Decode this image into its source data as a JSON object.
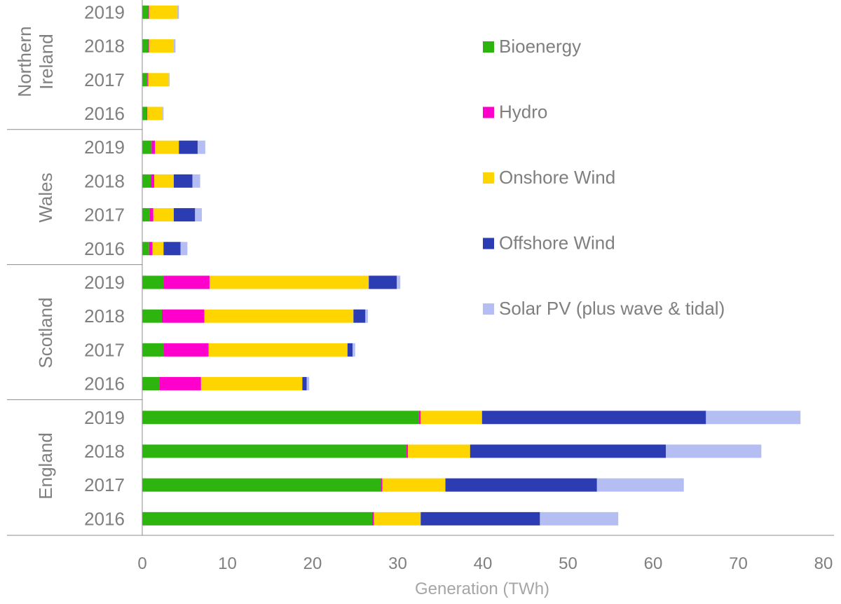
{
  "chart_data": {
    "type": "bar",
    "orientation": "horizontal",
    "stacked": true,
    "xlabel": "Generation (TWh)",
    "xlim": [
      0,
      80
    ],
    "xticks": [
      0,
      10,
      20,
      30,
      40,
      50,
      60,
      70,
      80
    ],
    "grid": false,
    "legend_position": "right",
    "series": [
      {
        "name": "Bioenergy",
        "color": "#2db40f"
      },
      {
        "name": "Hydro",
        "color": "#ff00cc"
      },
      {
        "name": "Onshore Wind",
        "color": "#ffd500"
      },
      {
        "name": "Offshore Wind",
        "color": "#2c3db4"
      },
      {
        "name": "Solar PV (plus wave & tidal)",
        "color": "#b4bef2"
      }
    ],
    "groups": [
      {
        "name": "Northern Ireland",
        "label_lines": [
          "Northern",
          "Ireland"
        ],
        "rows": [
          {
            "year": "2019",
            "values": [
              0.7,
              0.1,
              3.3,
              0,
              0.2
            ]
          },
          {
            "year": "2018",
            "values": [
              0.7,
              0.1,
              2.9,
              0,
              0.2
            ]
          },
          {
            "year": "2017",
            "values": [
              0.6,
              0.1,
              2.4,
              0,
              0.1
            ]
          },
          {
            "year": "2016",
            "values": [
              0.5,
              0.1,
              1.8,
              0,
              0.1
            ]
          }
        ]
      },
      {
        "name": "Wales",
        "label_lines": [
          "Wales"
        ],
        "rows": [
          {
            "year": "2019",
            "values": [
              1.1,
              0.4,
              2.8,
              2.2,
              0.9
            ]
          },
          {
            "year": "2018",
            "values": [
              1.0,
              0.4,
              2.3,
              2.2,
              0.9
            ]
          },
          {
            "year": "2017",
            "values": [
              0.9,
              0.4,
              2.4,
              2.5,
              0.8
            ]
          },
          {
            "year": "2016",
            "values": [
              0.8,
              0.4,
              1.3,
              2.0,
              0.8
            ]
          }
        ]
      },
      {
        "name": "Scotland",
        "label_lines": [
          "Scotland"
        ],
        "rows": [
          {
            "year": "2019",
            "values": [
              2.5,
              5.4,
              18.7,
              3.3,
              0.4
            ]
          },
          {
            "year": "2018",
            "values": [
              2.3,
              5.0,
              17.5,
              1.4,
              0.3
            ]
          },
          {
            "year": "2017",
            "values": [
              2.5,
              5.3,
              16.3,
              0.6,
              0.3
            ]
          },
          {
            "year": "2016",
            "values": [
              2.0,
              4.9,
              11.9,
              0.5,
              0.3
            ]
          }
        ]
      },
      {
        "name": "England",
        "label_lines": [
          "England"
        ],
        "rows": [
          {
            "year": "2019",
            "values": [
              32.5,
              0.2,
              7.2,
              26.3,
              11.1
            ]
          },
          {
            "year": "2018",
            "values": [
              31.0,
              0.2,
              7.3,
              23.0,
              11.2
            ]
          },
          {
            "year": "2017",
            "values": [
              28.0,
              0.2,
              7.4,
              17.8,
              10.2
            ]
          },
          {
            "year": "2016",
            "values": [
              27.0,
              0.2,
              5.5,
              14.0,
              9.2
            ]
          }
        ]
      }
    ]
  }
}
